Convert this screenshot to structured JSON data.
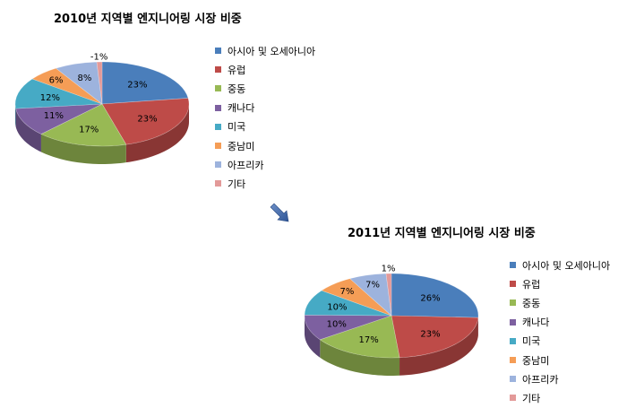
{
  "chart_data": [
    {
      "type": "pie",
      "title": "2010년 지역별 엔지니어링 시장 비중",
      "categories": [
        "아시아 및 오세아니아",
        "유럽",
        "중동",
        "캐나다",
        "미국",
        "중남미",
        "아프리카",
        "기타"
      ],
      "values": [
        23,
        23,
        17,
        11,
        12,
        6,
        8,
        -1
      ],
      "labels": [
        "23%",
        "23%",
        "17%",
        "11%",
        "12%",
        "6%",
        "8%",
        "-1%"
      ],
      "colors": [
        "#4A7EBB",
        "#BE4B48",
        "#98B954",
        "#7D60A0",
        "#46AAC5",
        "#F59D56",
        "#9DB3DD",
        "#E39A99"
      ],
      "legend_position": "right"
    },
    {
      "type": "pie",
      "title": "2011년 지역별 엔지니어링 시장 비중",
      "categories": [
        "아시아 및 오세아니아",
        "유럽",
        "중동",
        "캐나다",
        "미국",
        "중남미",
        "아프리카",
        "기타"
      ],
      "values": [
        26,
        23,
        17,
        10,
        10,
        7,
        7,
        1
      ],
      "labels": [
        "26%",
        "23%",
        "17%",
        "10%",
        "10%",
        "7%",
        "7%",
        "1%"
      ],
      "colors": [
        "#4A7EBB",
        "#BE4B48",
        "#98B954",
        "#7D60A0",
        "#46AAC5",
        "#F59D56",
        "#9DB3DD",
        "#E39A99"
      ],
      "legend_position": "right"
    }
  ],
  "arrow_icon": "arrow-down-right-icon"
}
